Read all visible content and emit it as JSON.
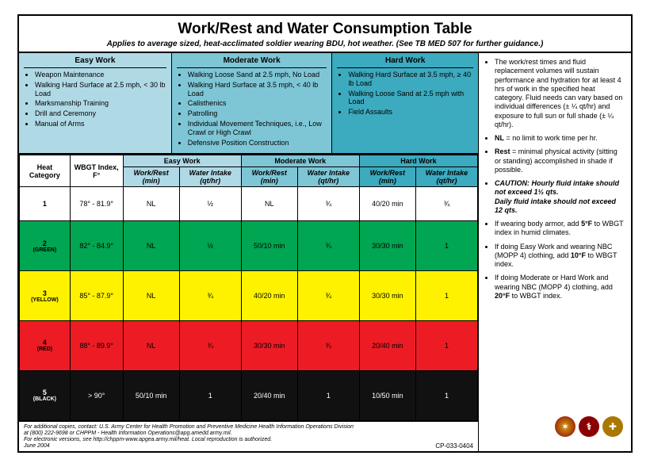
{
  "title": "Work/Rest and Water Consumption Table",
  "subtitle": "Applies to average sized, heat-acclimated soldier wearing BDU, hot weather. (See TB MED 507 for further guidance.)",
  "colors": {
    "easy": "#b0d9e6",
    "moderate": "#7ec6d6",
    "hard": "#3caabf",
    "green_row": "#00a651",
    "yellow_row": "#fff200",
    "red_row": "#ed1c24",
    "black_row": "#111111",
    "border": "#000000",
    "background": "#ffffff"
  },
  "activities": {
    "easy": {
      "label": "Easy Work",
      "items": [
        "Weapon Maintenance",
        "Walking Hard Surface at 2.5 mph, < 30 lb Load",
        "Marksmanship Training",
        "Drill and Ceremony",
        "Manual of Arms"
      ]
    },
    "moderate": {
      "label": "Moderate Work",
      "items": [
        "Walking Loose Sand at 2.5 mph, No Load",
        "Walking Hard Surface at 3.5 mph, < 40 lb Load",
        "Calisthenics",
        "Patrolling",
        "Individual Movement Techniques, i.e., Low Crawl or High Crawl",
        "Defensive Position Construction"
      ]
    },
    "hard": {
      "label": "Hard Work",
      "items": [
        "Walking Hard Surface at 3.5 mph, ≥ 40 lb Load",
        "Walking Loose Sand at 2.5 mph with Load",
        "Field Assaults"
      ]
    }
  },
  "table": {
    "headers": {
      "heat_category": "Heat Category",
      "wbgt": "WBGT Index, F°",
      "groups": [
        "Easy Work",
        "Moderate Work",
        "Hard Work"
      ],
      "sub": [
        "Work/Rest (min)",
        "Water Intake (qt/hr)"
      ]
    },
    "rows": [
      {
        "cat": "1",
        "catsub": "",
        "rowclass": "row-white",
        "wbgt": "78° - 81.9°",
        "easy_wr": "NL",
        "easy_wi": "½",
        "mod_wr": "NL",
        "mod_wi": "¾",
        "hard_wr": "40/20 min",
        "hard_wi": "¾"
      },
      {
        "cat": "2",
        "catsub": "(green)",
        "rowclass": "row-green",
        "wbgt": "82° - 84.9°",
        "easy_wr": "NL",
        "easy_wi": "½",
        "mod_wr": "50/10 min",
        "mod_wi": "¾",
        "hard_wr": "30/30 min",
        "hard_wi": "1"
      },
      {
        "cat": "3",
        "catsub": "(yellow)",
        "rowclass": "row-yellow",
        "wbgt": "85° - 87.9°",
        "easy_wr": "NL",
        "easy_wi": "¾",
        "mod_wr": "40/20 min",
        "mod_wi": "¾",
        "hard_wr": "30/30 min",
        "hard_wi": "1"
      },
      {
        "cat": "4",
        "catsub": "(red)",
        "rowclass": "row-red",
        "wbgt": "88° - 89.9°",
        "easy_wr": "NL",
        "easy_wi": "¾",
        "mod_wr": "30/30 min",
        "mod_wi": "¾",
        "hard_wr": "20/40 min",
        "hard_wi": "1"
      },
      {
        "cat": "5",
        "catsub": "(black)",
        "rowclass": "row-black",
        "wbgt": "> 90°",
        "easy_wr": "50/10 min",
        "easy_wi": "1",
        "mod_wr": "20/40 min",
        "mod_wi": "1",
        "hard_wr": "10/50 min",
        "hard_wi": "1"
      }
    ]
  },
  "notes": [
    "The work/rest times and fluid replacement volumes will sustain performance and hydration for at least 4 hrs of work in the specified heat category. Fluid needs can vary based on individual differences (± ¼ qt/hr) and exposure to full sun or full shade (± ¼ qt/hr).",
    "<b>NL</b> = no limit to work time per hr.",
    "<b>Rest</b> = minimal physical activity (sitting or standing) accomplished in shade if possible.",
    "<b><i>CAUTION: Hourly fluid intake should not exceed 1½ qts.</i></b><br><b><i>Daily fluid intake should not exceed 12 qts.</i></b>",
    "If wearing body armor, add <b>5°F</b> to WBGT index in humid climates.",
    "If doing Easy Work and wearing NBC (MOPP 4) clothing, add <b>10°F</b> to WBGT index.",
    "If doing Moderate or Hard Work and wearing NBC (MOPP 4) clothing, add <b>20°F</b> to WBGT index."
  ],
  "footer": {
    "lines": [
      "For additional copies, contact: U.S. Army Center for Health Promotion and Preventive Medicine Health Information Operations Division",
      "at (800) 222-9698 or CHPPM - Health Information Operations@apg.amedd.army.mil.",
      "For electronic versions, see http://chppm-www.apgea.army.mil/heat. Local reproduction is authorized.",
      "June 2004"
    ],
    "code": "CP-033-0404"
  }
}
